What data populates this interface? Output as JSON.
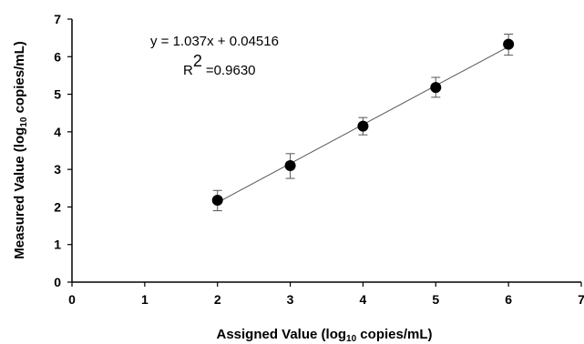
{
  "chart_data": {
    "type": "scatter",
    "xlim": [
      0,
      7
    ],
    "ylim": [
      0,
      7
    ],
    "x_ticks": [
      "0",
      "1",
      "2",
      "3",
      "4",
      "5",
      "6",
      "7"
    ],
    "y_ticks": [
      "0",
      "1",
      "2",
      "3",
      "4",
      "5",
      "6",
      "7"
    ],
    "xlabel": {
      "pre": "Assigned Value (log",
      "sub": "10",
      "post": " copies/mL)"
    },
    "ylabel": {
      "pre": "Measured Value (log",
      "sub": "10",
      "post": " copies/mL)"
    },
    "points": [
      {
        "x": 2,
        "y": 2.18,
        "err_low": 1.9,
        "err_high": 2.44
      },
      {
        "x": 3,
        "y": 3.1,
        "err_low": 2.76,
        "err_high": 3.42
      },
      {
        "x": 4,
        "y": 4.15,
        "err_low": 3.92,
        "err_high": 4.38
      },
      {
        "x": 5,
        "y": 5.18,
        "err_low": 4.92,
        "err_high": 5.45
      },
      {
        "x": 6,
        "y": 6.33,
        "err_low": 6.04,
        "err_high": 6.6
      }
    ],
    "fit": {
      "slope": 1.037,
      "intercept": 0.04516,
      "x_range": [
        2,
        6
      ],
      "equation": "y = 1.037x + 0.04516",
      "r2_base": "R",
      "r2_exp": "2",
      "r2_value": "=0.9630"
    },
    "grid": false
  }
}
